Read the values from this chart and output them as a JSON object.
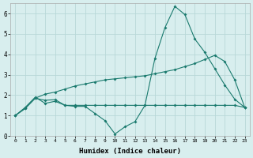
{
  "xlabel": "Humidex (Indice chaleur)",
  "x": [
    0,
    1,
    2,
    3,
    4,
    5,
    6,
    7,
    8,
    9,
    10,
    11,
    12,
    13,
    14,
    15,
    16,
    17,
    18,
    19,
    20,
    21,
    22,
    23
  ],
  "series1": [
    1.0,
    1.4,
    1.9,
    1.6,
    1.7,
    1.5,
    1.45,
    1.45,
    1.1,
    0.75,
    0.1,
    0.45,
    0.7,
    1.5,
    3.8,
    5.3,
    6.35,
    5.95,
    4.75,
    4.1,
    3.3,
    2.5,
    1.8,
    1.4
  ],
  "series2": [
    1.0,
    1.35,
    1.85,
    2.05,
    2.15,
    2.3,
    2.45,
    2.55,
    2.65,
    2.75,
    2.8,
    2.85,
    2.9,
    2.95,
    3.05,
    3.15,
    3.25,
    3.4,
    3.55,
    3.75,
    3.95,
    3.65,
    2.75,
    1.4
  ],
  "series3": [
    1.0,
    1.35,
    1.85,
    1.75,
    1.78,
    1.5,
    1.5,
    1.5,
    1.5,
    1.5,
    1.5,
    1.5,
    1.5,
    1.5,
    1.5,
    1.5,
    1.5,
    1.5,
    1.5,
    1.5,
    1.5,
    1.5,
    1.5,
    1.4
  ],
  "color": "#1a7a6e",
  "bg_color": "#d8eeee",
  "grid_color": "#b8d8d8",
  "ylim": [
    0,
    6.5
  ],
  "yticks": [
    0,
    1,
    2,
    3,
    4,
    5,
    6
  ],
  "xlim_min": -0.5,
  "xlim_max": 23.5
}
